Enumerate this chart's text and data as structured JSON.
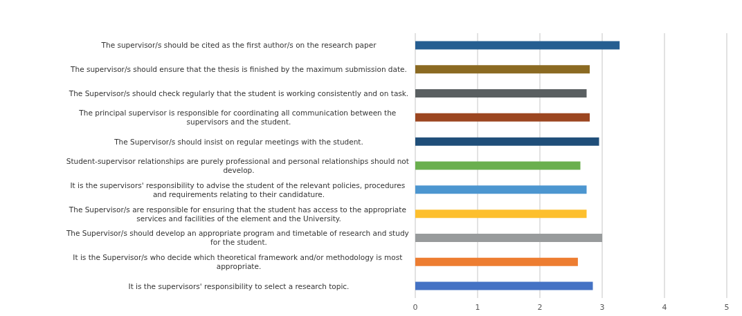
{
  "chart_data": {
    "type": "bar",
    "orientation": "horizontal",
    "categories": [
      "The supervisor/s should be cited as the first author/s on the research paper",
      "The supervisor/s should ensure that the thesis is finished by the maximum submission date.",
      "The Supervisor/s should check regularly that the student is working consistently and on task.",
      "The principal supervisor is responsible for coordinating all communication between the supervisors and the student.",
      "The Supervisor/s should insist on regular meetings with the student.",
      "Student-supervisor relationships are purely professional and personal relationships should not develop.",
      "It is the supervisors' responsibility to advise the student of the relevant policies, procedures and requirements relating to their candidature.",
      "The Supervisor/s are responsible for ensuring that the student has access to the appropriate services and facilities of the element and the University.",
      "The Supervisor/s should develop an appropriate program and timetable of research and study for the student.",
      "It is the Supervisor/s who decide which theoretical framework and/or methodology is most appropriate.",
      "It is the supervisors' responsibility to select a research topic."
    ],
    "values": [
      3.28,
      2.8,
      2.75,
      2.8,
      2.95,
      2.65,
      2.75,
      2.75,
      3.0,
      2.61,
      2.85
    ],
    "colors": [
      "#255e91",
      "#8b6a22",
      "#5a5f61",
      "#9c4620",
      "#1f4e79",
      "#6aaf4e",
      "#4c96d0",
      "#fdbf2d",
      "#989b9c",
      "#ed7d31",
      "#4472c4"
    ],
    "xlim": [
      0,
      5
    ],
    "xticks": [
      0,
      1,
      2,
      3,
      4,
      5
    ],
    "grid": "x"
  }
}
